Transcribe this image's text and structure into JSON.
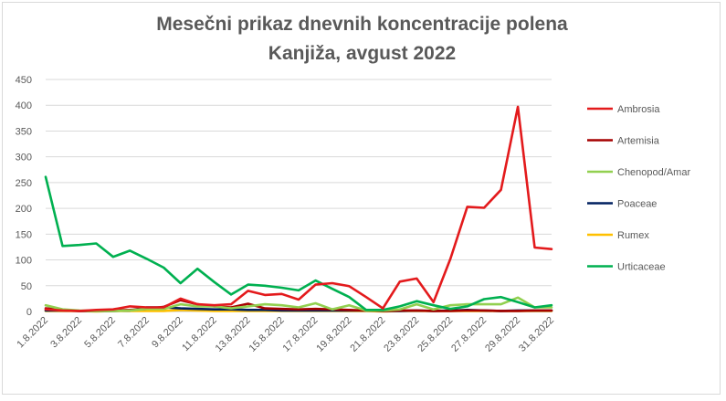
{
  "title": [
    "Mesečni prikaz dnevnih koncentracije polena",
    "Kanjiža, avgust 2022"
  ],
  "chart_data": {
    "type": "line",
    "title": "Mesečni prikaz dnevnih koncentracije polena Kanjiža, avgust 2022",
    "xlabel": "",
    "ylabel": "",
    "ylim": [
      0,
      450
    ],
    "yticks": [
      0,
      50,
      100,
      150,
      200,
      250,
      300,
      350,
      400,
      450
    ],
    "grid": true,
    "legend_position": "right",
    "x": [
      "1.8.2022",
      "2.8.2022",
      "3.8.2022",
      "4.8.2022",
      "5.8.2022",
      "6.8.2022",
      "7.8.2022",
      "8.8.2022",
      "9.8.2022",
      "10.8.2022",
      "11.8.2022",
      "12.8.2022",
      "13.8.2022",
      "14.8.2022",
      "15.8.2022",
      "16.8.2022",
      "17.8.2022",
      "18.8.2022",
      "19.8.2022",
      "20.8.2022",
      "21.8.2022",
      "22.8.2022",
      "23.8.2022",
      "24.8.2022",
      "25.8.2022",
      "26.8.2022",
      "27.8.2022",
      "28.8.2022",
      "29.8.2022",
      "30.8.2022",
      "31.8.2022"
    ],
    "x_tick_labels": [
      "1.8.2022",
      "3.8.2022",
      "5.8.2022",
      "7.8.2022",
      "9.8.2022",
      "11.8.2022",
      "13.8.2022",
      "15.8.2022",
      "17.8.2022",
      "19.8.2022",
      "21.8.2022",
      "23.8.2022",
      "25.8.2022",
      "27.8.2022",
      "29.8.2022",
      "31.8.2022"
    ],
    "series": [
      {
        "name": "Ambrosia",
        "color": "#e31a1c",
        "values": [
          4,
          2,
          1,
          3,
          4,
          10,
          8,
          8,
          25,
          14,
          12,
          14,
          40,
          32,
          34,
          23,
          52,
          55,
          49,
          28,
          6,
          58,
          64,
          18,
          102,
          203,
          201,
          236,
          397,
          124,
          121
        ]
      },
      {
        "name": "Artemisia",
        "color": "#a50000",
        "values": [
          6,
          3,
          1,
          2,
          2,
          3,
          5,
          9,
          22,
          14,
          10,
          8,
          15,
          6,
          5,
          4,
          5,
          4,
          3,
          2,
          1,
          2,
          2,
          1,
          1,
          2,
          2,
          1,
          1,
          2,
          2
        ]
      },
      {
        "name": "Chenopod/Amar",
        "color": "#92d050",
        "values": [
          12,
          4,
          2,
          1,
          1,
          2,
          5,
          5,
          14,
          10,
          10,
          6,
          10,
          14,
          12,
          8,
          16,
          4,
          12,
          2,
          2,
          4,
          14,
          4,
          12,
          14,
          14,
          14,
          27,
          8,
          8
        ]
      },
      {
        "name": "Poaceae",
        "color": "#002060",
        "values": [
          2,
          2,
          1,
          1,
          1,
          2,
          8,
          8,
          6,
          5,
          4,
          4,
          3,
          3,
          2,
          2,
          2,
          2,
          2,
          2,
          1,
          1,
          2,
          1,
          2,
          3,
          2,
          1,
          2,
          2,
          2
        ]
      },
      {
        "name": "Rumex",
        "color": "#ffc000",
        "values": [
          1,
          1,
          1,
          0,
          1,
          1,
          1,
          1,
          3,
          2,
          1,
          1,
          1,
          1,
          1,
          1,
          1,
          1,
          1,
          1,
          0,
          1,
          1,
          1,
          1,
          1,
          1,
          1,
          1,
          1,
          1
        ]
      },
      {
        "name": "Urticaceae",
        "color": "#00b050",
        "values": [
          261,
          127,
          129,
          132,
          106,
          118,
          102,
          85,
          55,
          83,
          57,
          33,
          52,
          50,
          46,
          41,
          60,
          44,
          28,
          3,
          3,
          10,
          20,
          12,
          5,
          10,
          24,
          28,
          18,
          8,
          12
        ]
      }
    ]
  }
}
